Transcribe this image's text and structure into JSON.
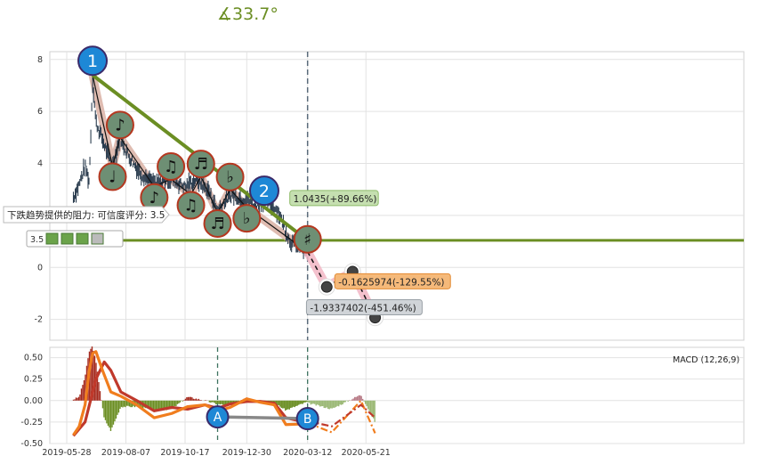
{
  "angle_label": "∡33.7°",
  "chart_data": [
    {
      "type": "line",
      "subtype": "candlestick-annotated",
      "x_ticks": [
        "2019-05-28",
        "2019-08-07",
        "2019-10-17",
        "2019-12-30",
        "2020-03-12",
        "2020-05-21"
      ],
      "ylim": [
        -2.8,
        8.3
      ],
      "y_ticks": [
        -2,
        0,
        2,
        4,
        6,
        8
      ],
      "grid": true,
      "price_path": [
        {
          "x": "2019-06-05",
          "y": 2.7
        },
        {
          "x": "2019-06-12",
          "y": 3.2
        },
        {
          "x": "2019-06-19",
          "y": 3.9
        },
        {
          "x": "2019-06-24",
          "y": 3.3
        },
        {
          "x": "2019-06-28",
          "y": 7.2
        },
        {
          "x": "2019-07-02",
          "y": 5.6
        },
        {
          "x": "2019-07-10",
          "y": 4.9
        },
        {
          "x": "2019-07-17",
          "y": 4.3
        },
        {
          "x": "2019-07-22",
          "y": 3.9
        },
        {
          "x": "2019-07-31",
          "y": 5.0
        },
        {
          "x": "2019-08-10",
          "y": 4.3
        },
        {
          "x": "2019-08-25",
          "y": 3.6
        },
        {
          "x": "2019-09-10",
          "y": 3.2
        },
        {
          "x": "2019-09-30",
          "y": 3.4
        },
        {
          "x": "2019-10-17",
          "y": 3.1
        },
        {
          "x": "2019-10-30",
          "y": 3.4
        },
        {
          "x": "2019-11-15",
          "y": 2.9
        },
        {
          "x": "2019-11-25",
          "y": 2.2
        },
        {
          "x": "2019-12-10",
          "y": 2.8
        },
        {
          "x": "2019-12-30",
          "y": 2.6
        },
        {
          "x": "2020-01-10",
          "y": 2.3
        },
        {
          "x": "2020-01-20",
          "y": 2.6
        },
        {
          "x": "2020-02-05",
          "y": 2.2
        },
        {
          "x": "2020-02-20",
          "y": 1.0
        },
        {
          "x": "2020-03-12",
          "y": 0.6
        }
      ],
      "pattern_points": [
        {
          "x": "2019-06-28",
          "y": 7.4,
          "symbol": ""
        },
        {
          "x": "2019-07-22",
          "y": 3.9,
          "symbol": "♩"
        },
        {
          "x": "2019-07-31",
          "y": 5.0,
          "symbol": "♪"
        },
        {
          "x": "2019-09-10",
          "y": 3.1,
          "symbol": "♪"
        },
        {
          "x": "2019-09-30",
          "y": 3.4,
          "symbol": "♫"
        },
        {
          "x": "2019-10-24",
          "y": 2.8,
          "symbol": "♫"
        },
        {
          "x": "2019-11-05",
          "y": 3.5,
          "symbol": "♬"
        },
        {
          "x": "2019-11-25",
          "y": 2.1,
          "symbol": "♬"
        },
        {
          "x": "2019-12-10",
          "y": 3.0,
          "symbol": "♭"
        },
        {
          "x": "2019-12-30",
          "y": 2.3,
          "symbol": "♭"
        },
        {
          "x": "2020-03-12",
          "y": 0.6,
          "symbol": "♯"
        }
      ],
      "trendline": [
        {
          "x": "2019-06-28",
          "y": 7.4
        },
        {
          "x": "2020-03-12",
          "y": 1.04
        }
      ],
      "resistance_level": 1.04,
      "markers": [
        {
          "label": "1",
          "x": "2019-06-28",
          "y": 7.95
        },
        {
          "label": "2",
          "x": "2020-01-20",
          "y": 2.95
        }
      ],
      "forecast": [
        {
          "x": "2020-03-12",
          "y": 0.6
        },
        {
          "x": "2020-04-04",
          "y": -0.75
        },
        {
          "x": "2020-05-05",
          "y": -0.16
        },
        {
          "x": "2020-06-01",
          "y": -1.93
        }
      ],
      "annotations": [
        {
          "text": "1.0435(+89.66%)",
          "x": "2020-03-12",
          "y": 2.65,
          "color": "#c5dfb0",
          "border": "#8fbc6a"
        },
        {
          "text": "-0.1625974(-129.55%)",
          "x": "2020-05-05",
          "y": -0.55,
          "color": "#f5b97a",
          "border": "#e38b33"
        },
        {
          "text": "-1.9337402(-451.46%)",
          "x": "2020-04-01",
          "y": -1.55,
          "color": "#d0d4d8",
          "border": "#9aa1a7"
        }
      ],
      "hint": "下跌趋势提供的阻力: 可信度评分: 3.5",
      "score_text": "3.5",
      "vline_date": "2020-03-12"
    },
    {
      "type": "bar",
      "subtype": "macd",
      "legend": "MACD (12,26,9)",
      "ylim": [
        -0.5,
        0.62
      ],
      "y_ticks": [
        "0.50",
        "0.25",
        "0.00",
        "-0.25",
        "-0.50"
      ],
      "y_tick_values": [
        0.5,
        0.25,
        0,
        -0.25,
        -0.5
      ],
      "vlines": [
        "2019-11-25",
        "2020-03-12"
      ],
      "points": [
        {
          "label": "A",
          "x": "2019-11-25",
          "y": -0.19
        },
        {
          "label": "B",
          "x": "2020-03-12",
          "y": -0.21
        }
      ],
      "macd_line": [
        {
          "x": "2019-06-05",
          "y": -0.4
        },
        {
          "x": "2019-06-12",
          "y": -0.3
        },
        {
          "x": "2019-06-19",
          "y": -0.05
        },
        {
          "x": "2019-06-24",
          "y": 0.35
        },
        {
          "x": "2019-06-28",
          "y": 0.55
        },
        {
          "x": "2019-07-02",
          "y": 0.57
        },
        {
          "x": "2019-07-10",
          "y": 0.35
        },
        {
          "x": "2019-07-20",
          "y": 0.1
        },
        {
          "x": "2019-08-01",
          "y": 0.05
        },
        {
          "x": "2019-08-20",
          "y": -0.05
        },
        {
          "x": "2019-09-10",
          "y": -0.2
        },
        {
          "x": "2019-10-01",
          "y": -0.15
        },
        {
          "x": "2019-10-20",
          "y": -0.07
        },
        {
          "x": "2019-11-10",
          "y": -0.05
        },
        {
          "x": "2019-11-25",
          "y": -0.12
        },
        {
          "x": "2019-12-10",
          "y": -0.08
        },
        {
          "x": "2019-12-30",
          "y": 0.02
        },
        {
          "x": "2020-01-15",
          "y": -0.02
        },
        {
          "x": "2020-02-01",
          "y": -0.05
        },
        {
          "x": "2020-02-15",
          "y": -0.28
        },
        {
          "x": "2020-03-12",
          "y": -0.27
        }
      ],
      "signal_line": [
        {
          "x": "2019-06-05",
          "y": -0.41
        },
        {
          "x": "2019-06-19",
          "y": -0.25
        },
        {
          "x": "2019-07-02",
          "y": 0.25
        },
        {
          "x": "2019-07-12",
          "y": 0.45
        },
        {
          "x": "2019-07-20",
          "y": 0.35
        },
        {
          "x": "2019-08-01",
          "y": 0.1
        },
        {
          "x": "2019-08-20",
          "y": 0.0
        },
        {
          "x": "2019-09-10",
          "y": -0.12
        },
        {
          "x": "2019-10-01",
          "y": -0.08
        },
        {
          "x": "2019-10-20",
          "y": -0.1
        },
        {
          "x": "2019-11-10",
          "y": -0.05
        },
        {
          "x": "2019-11-25",
          "y": -0.09
        },
        {
          "x": "2019-12-10",
          "y": -0.04
        },
        {
          "x": "2019-12-30",
          "y": -0.01
        },
        {
          "x": "2020-01-15",
          "y": -0.01
        },
        {
          "x": "2020-02-01",
          "y": -0.03
        },
        {
          "x": "2020-02-15",
          "y": -0.2
        },
        {
          "x": "2020-03-12",
          "y": -0.26
        }
      ],
      "forecast_macd": [
        {
          "x": "2020-03-12",
          "y": -0.26
        },
        {
          "x": "2020-04-10",
          "y": -0.37
        },
        {
          "x": "2020-05-15",
          "y": 0.0
        },
        {
          "x": "2020-06-01",
          "y": -0.38
        }
      ],
      "forecast_signal": [
        {
          "x": "2020-03-12",
          "y": -0.24
        },
        {
          "x": "2020-04-10",
          "y": -0.3
        },
        {
          "x": "2020-05-15",
          "y": -0.05
        },
        {
          "x": "2020-06-01",
          "y": -0.2
        }
      ]
    }
  ]
}
